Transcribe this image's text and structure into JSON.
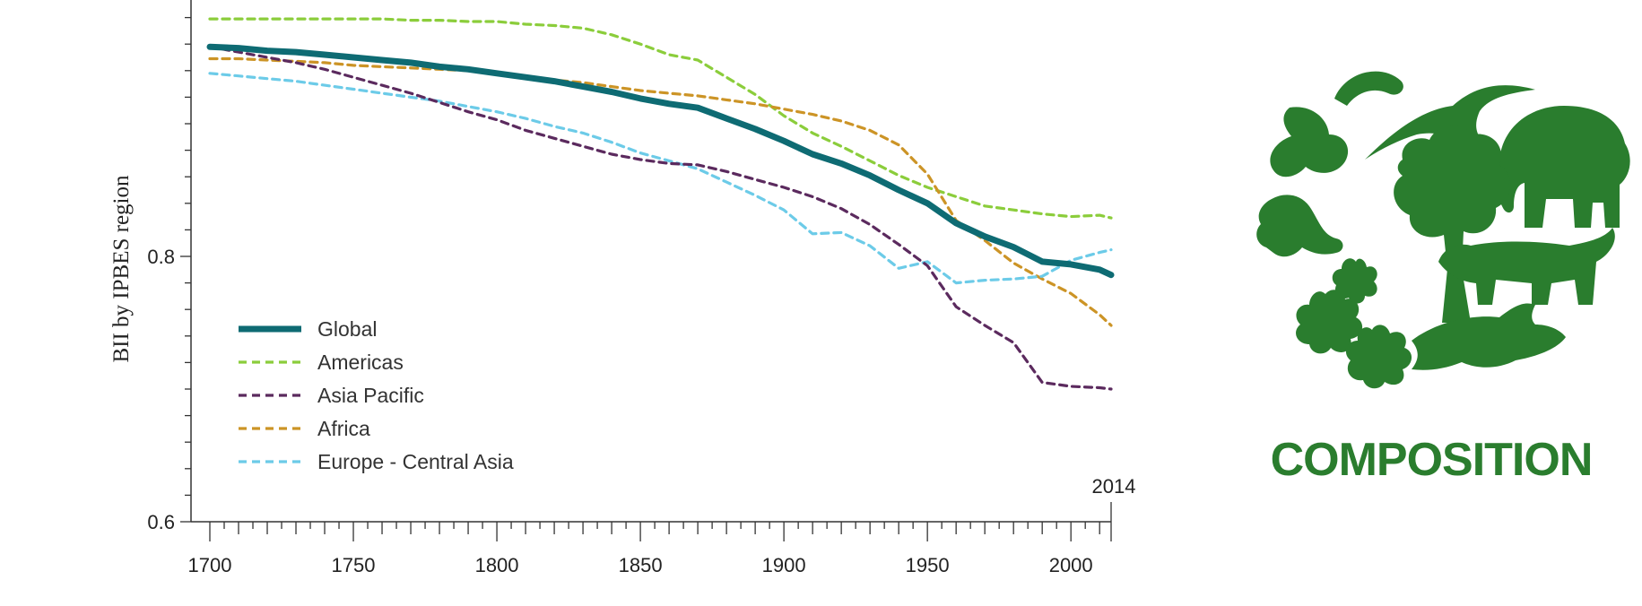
{
  "chart_data": {
    "type": "line",
    "title": "",
    "xlabel": "",
    "ylabel": "BII by IPBES region",
    "xlim": [
      1700,
      2014
    ],
    "ylim": [
      0.6,
      1.0
    ],
    "x_ticks": [
      1700,
      1750,
      1800,
      1850,
      1900,
      1950,
      2000
    ],
    "y_ticks": [
      0.6,
      0.8
    ],
    "end_label": "2014",
    "legend_position": "bottom-left",
    "grid": false,
    "x": [
      1700,
      1710,
      1720,
      1730,
      1740,
      1750,
      1760,
      1770,
      1780,
      1790,
      1800,
      1810,
      1820,
      1830,
      1840,
      1850,
      1860,
      1870,
      1880,
      1890,
      1900,
      1910,
      1920,
      1930,
      1940,
      1950,
      1960,
      1970,
      1980,
      1990,
      2000,
      2010,
      2014
    ],
    "series": [
      {
        "name": "Global",
        "color": "#0e6b73",
        "style": "solid",
        "values": [
          0.958,
          0.957,
          0.955,
          0.954,
          0.952,
          0.95,
          0.948,
          0.946,
          0.943,
          0.941,
          0.938,
          0.935,
          0.932,
          0.928,
          0.924,
          0.919,
          0.915,
          0.912,
          0.904,
          0.896,
          0.887,
          0.877,
          0.87,
          0.861,
          0.85,
          0.84,
          0.825,
          0.815,
          0.807,
          0.796,
          0.794,
          0.79,
          0.786
        ]
      },
      {
        "name": "Americas",
        "color": "#8bcd3b",
        "style": "dashed",
        "values": [
          0.979,
          0.979,
          0.979,
          0.979,
          0.979,
          0.979,
          0.979,
          0.978,
          0.978,
          0.977,
          0.977,
          0.975,
          0.974,
          0.972,
          0.967,
          0.96,
          0.952,
          0.948,
          0.935,
          0.922,
          0.906,
          0.893,
          0.883,
          0.872,
          0.861,
          0.852,
          0.845,
          0.838,
          0.835,
          0.832,
          0.83,
          0.831,
          0.829
        ]
      },
      {
        "name": "Asia Pacific",
        "color": "#5b2a5e",
        "style": "dashed",
        "values": [
          0.958,
          0.954,
          0.95,
          0.946,
          0.941,
          0.935,
          0.929,
          0.923,
          0.916,
          0.909,
          0.903,
          0.895,
          0.889,
          0.883,
          0.877,
          0.873,
          0.87,
          0.869,
          0.864,
          0.858,
          0.852,
          0.845,
          0.836,
          0.824,
          0.809,
          0.793,
          0.762,
          0.748,
          0.735,
          0.705,
          0.702,
          0.701,
          0.7
        ]
      },
      {
        "name": "Africa",
        "color": "#cc9426",
        "style": "dashed",
        "values": [
          0.949,
          0.949,
          0.948,
          0.947,
          0.946,
          0.944,
          0.943,
          0.942,
          0.941,
          0.94,
          0.938,
          0.936,
          0.933,
          0.931,
          0.928,
          0.925,
          0.923,
          0.921,
          0.918,
          0.915,
          0.911,
          0.907,
          0.902,
          0.895,
          0.884,
          0.862,
          0.827,
          0.812,
          0.795,
          0.783,
          0.772,
          0.756,
          0.748
        ]
      },
      {
        "name": "Europe - Central Asia",
        "color": "#6ccbe8",
        "style": "dashed",
        "values": [
          0.938,
          0.936,
          0.934,
          0.932,
          0.929,
          0.926,
          0.923,
          0.92,
          0.917,
          0.913,
          0.909,
          0.904,
          0.898,
          0.893,
          0.886,
          0.878,
          0.872,
          0.866,
          0.856,
          0.846,
          0.835,
          0.817,
          0.818,
          0.808,
          0.791,
          0.796,
          0.78,
          0.782,
          0.783,
          0.785,
          0.797,
          0.803,
          0.805
        ]
      }
    ]
  },
  "composition_label": "COMPOSITION",
  "illustration": {
    "name": "biodiversity-silhouettes-icon",
    "color": "#2a7d2e"
  }
}
